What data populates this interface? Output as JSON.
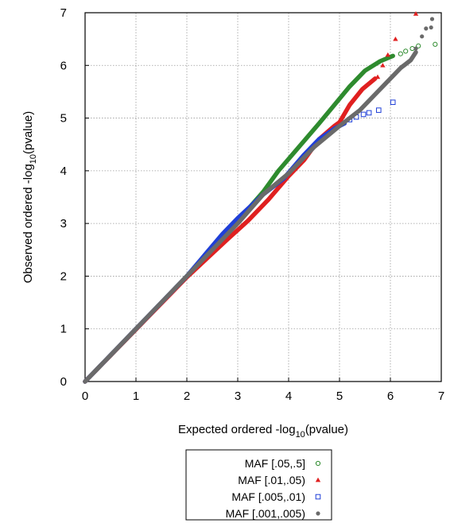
{
  "chart_data": {
    "type": "scatter",
    "title": "",
    "xlabel": {
      "prefix": "Expected ordered -log",
      "sub": "10",
      "suffix": "(pvalue)"
    },
    "ylabel": {
      "prefix": "Observed ordered -log",
      "sub": "10",
      "suffix": "(pvalue)"
    },
    "xlim": [
      0,
      7
    ],
    "ylim": [
      0,
      7
    ],
    "x_ticks": [
      "0",
      "1",
      "2",
      "3",
      "4",
      "5",
      "6",
      "7"
    ],
    "y_ticks": [
      "0",
      "1",
      "2",
      "3",
      "4",
      "5",
      "6",
      "7"
    ],
    "grid": true,
    "legend_position": "below-plot",
    "series": [
      {
        "name": "MAF [.05,.5]",
        "color": "#2e8b2e",
        "marker": "open-circle",
        "dense_path": [
          [
            0,
            0
          ],
          [
            1,
            0.99
          ],
          [
            2,
            2.0
          ],
          [
            3,
            3.05
          ],
          [
            3.5,
            3.6
          ],
          [
            3.8,
            4.0
          ],
          [
            4.2,
            4.45
          ],
          [
            4.6,
            4.9
          ],
          [
            4.9,
            5.25
          ],
          [
            5.2,
            5.6
          ],
          [
            5.5,
            5.9
          ],
          [
            5.8,
            6.08
          ],
          [
            6.05,
            6.18
          ]
        ],
        "points": [
          [
            6.2,
            6.22
          ],
          [
            6.3,
            6.27
          ],
          [
            6.43,
            6.32
          ],
          [
            6.55,
            6.37
          ],
          [
            6.88,
            6.4
          ]
        ]
      },
      {
        "name": "MAF [.01,.05)",
        "color": "#e02020",
        "marker": "triangle",
        "dense_path": [
          [
            0,
            0
          ],
          [
            1,
            0.99
          ],
          [
            2,
            1.98
          ],
          [
            2.8,
            2.7
          ],
          [
            3.2,
            3.05
          ],
          [
            3.6,
            3.45
          ],
          [
            4.0,
            3.9
          ],
          [
            4.3,
            4.2
          ],
          [
            4.6,
            4.6
          ],
          [
            4.9,
            4.85
          ],
          [
            5.0,
            4.92
          ],
          [
            5.2,
            5.25
          ],
          [
            5.45,
            5.55
          ],
          [
            5.7,
            5.75
          ]
        ],
        "points": [
          [
            5.75,
            5.78
          ],
          [
            5.85,
            6.0
          ],
          [
            5.95,
            6.2
          ],
          [
            6.1,
            6.5
          ],
          [
            6.5,
            6.98
          ]
        ]
      },
      {
        "name": "MAF [.005,.01)",
        "color": "#1f3fd8",
        "marker": "open-square",
        "dense_path": [
          [
            0,
            0
          ],
          [
            1,
            1.0
          ],
          [
            2,
            2.0
          ],
          [
            2.7,
            2.8
          ],
          [
            3.0,
            3.1
          ],
          [
            3.5,
            3.55
          ],
          [
            3.9,
            3.85
          ],
          [
            4.3,
            4.3
          ],
          [
            4.6,
            4.6
          ],
          [
            4.9,
            4.8
          ],
          [
            5.1,
            4.9
          ]
        ],
        "points": [
          [
            5.2,
            4.97
          ],
          [
            5.33,
            5.02
          ],
          [
            5.47,
            5.07
          ],
          [
            5.58,
            5.1
          ],
          [
            5.77,
            5.15
          ],
          [
            6.05,
            5.3
          ]
        ]
      },
      {
        "name": "MAF [.001,.005)",
        "color": "#6a6a6a",
        "marker": "filled-circle",
        "dense_path": [
          [
            0,
            0
          ],
          [
            1,
            1.0
          ],
          [
            2,
            2.0
          ],
          [
            3,
            3.0
          ],
          [
            3.5,
            3.55
          ],
          [
            4.0,
            3.95
          ],
          [
            4.5,
            4.45
          ],
          [
            5.0,
            4.85
          ],
          [
            5.4,
            5.15
          ],
          [
            5.7,
            5.45
          ],
          [
            5.95,
            5.7
          ],
          [
            6.2,
            5.95
          ],
          [
            6.4,
            6.1
          ],
          [
            6.5,
            6.25
          ]
        ],
        "points": [
          [
            6.5,
            6.32
          ],
          [
            6.62,
            6.55
          ],
          [
            6.7,
            6.7
          ],
          [
            6.8,
            6.72
          ],
          [
            6.82,
            6.88
          ]
        ]
      }
    ]
  }
}
